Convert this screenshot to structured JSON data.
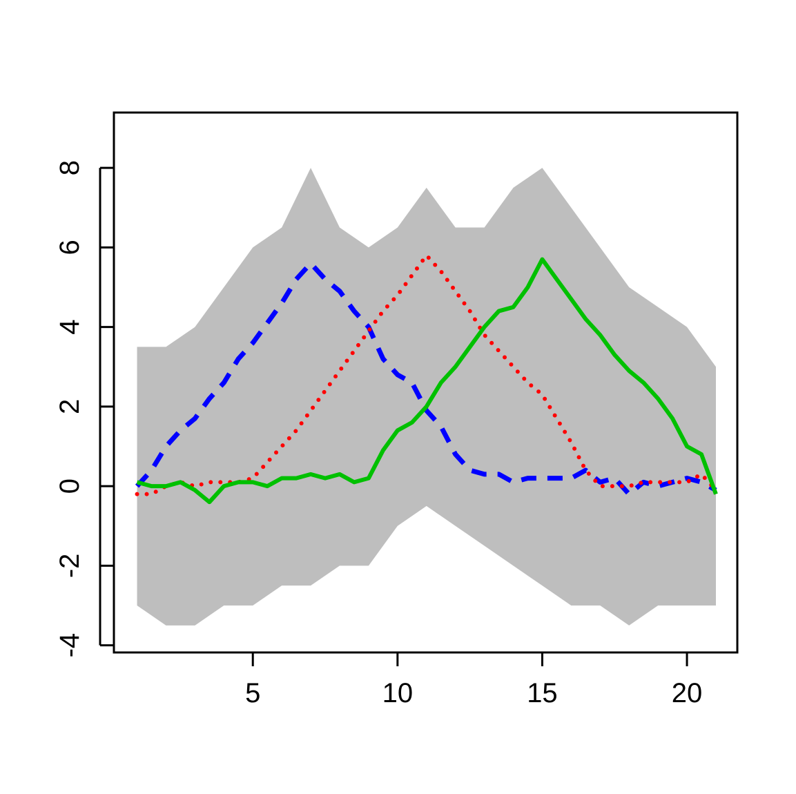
{
  "chart_data": {
    "type": "line",
    "x": [
      1,
      1.5,
      2,
      2.5,
      3,
      3.5,
      4,
      4.5,
      5,
      5.5,
      6,
      6.5,
      7,
      7.5,
      8,
      8.5,
      9,
      9.5,
      10,
      10.5,
      11,
      11.5,
      12,
      12.5,
      13,
      13.5,
      14,
      14.5,
      15,
      15.5,
      16,
      16.5,
      17,
      17.5,
      18,
      18.5,
      19,
      19.5,
      20,
      20.5,
      21
    ],
    "series": [
      {
        "color": "#0000ff",
        "style": "dashed",
        "values": [
          0,
          0.4,
          1.0,
          1.4,
          1.7,
          2.2,
          2.6,
          3.2,
          3.6,
          4.1,
          4.6,
          5.2,
          5.6,
          5.2,
          4.9,
          4.4,
          4.0,
          3.2,
          2.8,
          2.6,
          1.9,
          1.5,
          0.8,
          0.4,
          0.3,
          0.3,
          0.1,
          0.2,
          0.2,
          0.2,
          0.2,
          0.4,
          0.1,
          0.2,
          -0.2,
          0.1,
          0,
          0.1,
          0.2,
          0.1,
          -0.1
        ]
      },
      {
        "color": "#ff0000",
        "style": "dotted",
        "values": [
          -0.2,
          -0.2,
          0,
          0.1,
          0,
          0.1,
          0.1,
          0.1,
          0.2,
          0.6,
          1.0,
          1.4,
          1.9,
          2.4,
          2.9,
          3.4,
          3.9,
          4.4,
          4.8,
          5.3,
          5.8,
          5.4,
          4.9,
          4.4,
          3.8,
          3.4,
          3.0,
          2.6,
          2.3,
          1.7,
          1.1,
          0.4,
          0,
          0,
          0,
          0.1,
          0.1,
          0.1,
          0.1,
          0.3,
          -0.1
        ]
      },
      {
        "color": "#00c000",
        "style": "solid",
        "values": [
          0.1,
          0,
          0,
          0.1,
          -0.1,
          -0.4,
          0,
          0.1,
          0.1,
          0,
          0.2,
          0.2,
          0.3,
          0.2,
          0.3,
          0.1,
          0.2,
          0.9,
          1.4,
          1.6,
          2.0,
          2.6,
          3.0,
          3.5,
          4.0,
          4.4,
          4.5,
          5.0,
          5.7,
          5.2,
          4.7,
          4.2,
          3.8,
          3.3,
          2.9,
          2.6,
          2.2,
          1.7,
          1.0,
          0.8,
          -0.2
        ]
      }
    ],
    "band": {
      "color": "#bebebe",
      "x": [
        1,
        2,
        3,
        4,
        5,
        6,
        7,
        8,
        9,
        10,
        11,
        12,
        13,
        14,
        15,
        16,
        17,
        18,
        19,
        20,
        21
      ],
      "upper": [
        3.5,
        3.5,
        4,
        5,
        6,
        6.5,
        8,
        6.5,
        6,
        6.5,
        7.5,
        6.5,
        6.5,
        7.5,
        8,
        7,
        6,
        5,
        4.5,
        4,
        3
      ],
      "lower": [
        -3,
        -3.5,
        -3.5,
        -3,
        -3,
        -2.5,
        -2.5,
        -2,
        -2,
        -1,
        -0.5,
        -1,
        -1.5,
        -2,
        -2.5,
        -3,
        -3,
        -3.5,
        -3,
        -3,
        -3
      ]
    },
    "xlim": [
      0.2,
      21.74
    ],
    "ylim": [
      -4.18,
      9.39
    ],
    "xticks": [
      5,
      10,
      15,
      20
    ],
    "yticks": [
      -4,
      -2,
      0,
      2,
      4,
      6,
      8
    ]
  }
}
